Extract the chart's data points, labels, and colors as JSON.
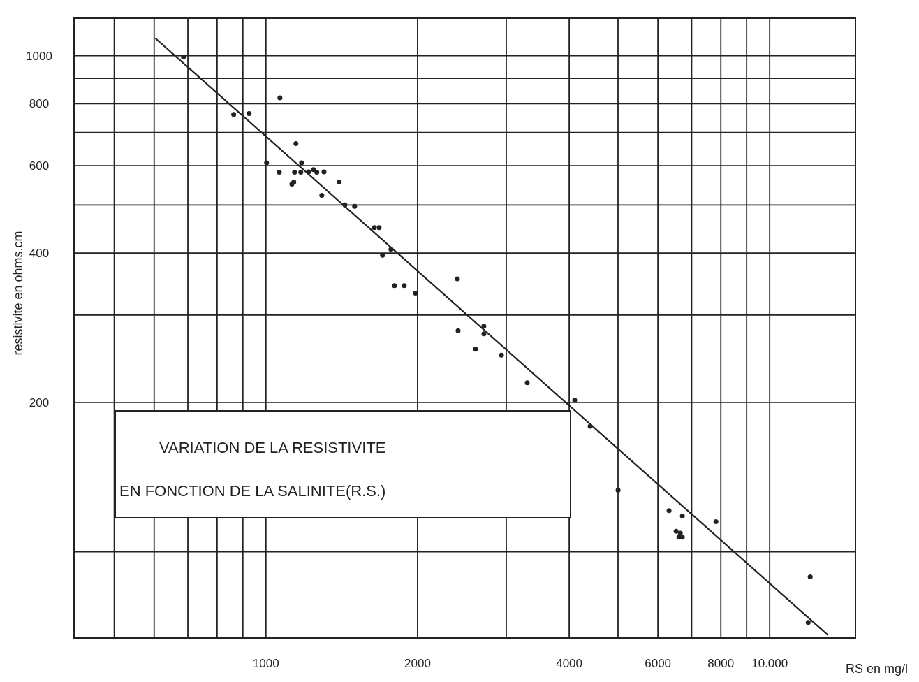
{
  "chart_data": {
    "type": "scatter",
    "title": "VARIATION DE LA RESISTIVITE\nEN FONCTION DE LA SALINITE(R.S.)",
    "xlabel": "RS en mg/l",
    "ylabel": "resistivite en ohms.cm",
    "log": "xy",
    "grid": true,
    "marker": "circle",
    "xlim": [
      416,
      14800
    ],
    "ylim": [
      67,
      1190
    ],
    "xticks": [
      {
        "value": 500,
        "label": null
      },
      {
        "value": 600,
        "label": null
      },
      {
        "value": 700,
        "label": null
      },
      {
        "value": 800,
        "label": null
      },
      {
        "value": 900,
        "label": null
      },
      1000,
      2000,
      {
        "value": 3000,
        "label": null
      },
      4000,
      {
        "value": 5000,
        "label": null
      },
      6000,
      {
        "value": 7000,
        "label": null
      },
      8000,
      {
        "value": 9000,
        "label": null
      },
      {
        "value": 10000,
        "label": "10.000"
      }
    ],
    "yticks": [
      {
        "value": 100,
        "label": null
      },
      200,
      {
        "value": 300,
        "label": null
      },
      400,
      {
        "value": 500,
        "label": null
      },
      600,
      {
        "value": 700,
        "label": null
      },
      800,
      {
        "value": 900,
        "label": null
      },
      1000
    ],
    "series": [
      {
        "color": "#222222",
        "x": [
          686,
          863,
          926,
          1066,
          1003,
          1063,
          1147,
          1177,
          1140,
          1173,
          1215,
          1243,
          1262,
          1304,
          1126,
          1136,
          1291,
          1398,
          1435,
          1500,
          1641,
          1678,
          1771,
          1704,
          1800,
          1882,
          1981,
          2399,
          2407,
          2708,
          2708,
          2607,
          2934,
          3302,
          4102,
          4401,
          5001,
          6313,
          6709,
          6520,
          6646,
          6603,
          6709,
          7822,
          12035,
          11925
        ],
        "values": [
          994,
          761,
          764,
          822,
          608,
          582,
          665,
          608,
          582,
          582,
          583,
          589,
          582,
          583,
          551,
          556,
          523,
          556,
          500,
          497,
          450,
          450,
          407,
          396,
          344,
          344,
          332,
          355,
          279,
          285,
          275,
          256,
          249,
          219,
          202,
          179,
          133,
          121,
          118,
          110,
          109,
          107,
          107,
          115,
          89,
          72
        ]
      },
      {
        "type": "line",
        "color": "#222222",
        "marker": "none",
        "x": [
          604,
          13030
        ],
        "values": [
          1083,
          68
        ]
      }
    ]
  }
}
